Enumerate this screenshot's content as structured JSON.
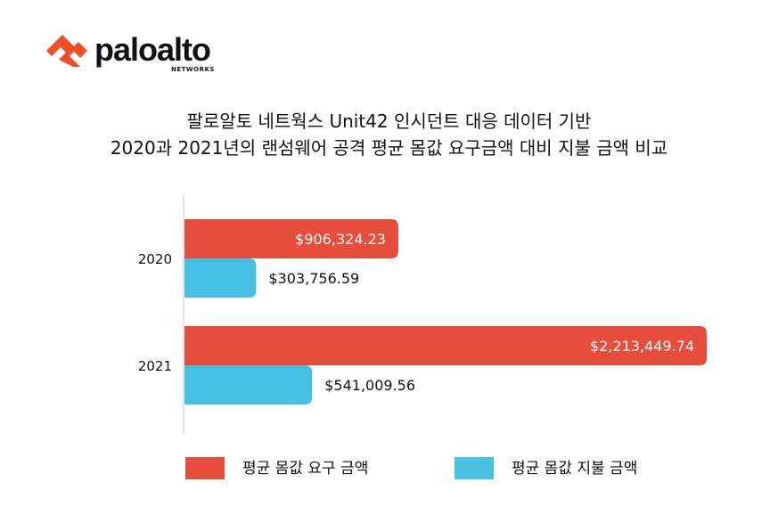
{
  "logo": {
    "name": "paloalto",
    "sub": "NETWORKS"
  },
  "chart_data": {
    "type": "bar",
    "orientation": "horizontal",
    "title": [
      "팔로알토 네트웍스 Unit42 인시던트 대응 데이터 기반",
      "2020과 2021년의 랜섬웨어 공격 평균 몸값 요구금액 대비 지불 금액 비교"
    ],
    "categories": [
      "2020",
      "2021"
    ],
    "series": [
      {
        "name": "평균 몸값 요구 금액",
        "color": "#E64E3B",
        "values": [
          906324.23,
          2213449.74
        ],
        "labels": [
          "$906,324.23",
          "$2,213,449.74"
        ]
      },
      {
        "name": "평균 몸값 지불 금액",
        "color": "#47C1E2",
        "values": [
          303756.59,
          541009.56
        ],
        "labels": [
          "$303,756.59",
          "$541,009.56"
        ]
      }
    ],
    "xlim": [
      0,
      2213449.74
    ],
    "grid": false,
    "legend": "bottom"
  }
}
